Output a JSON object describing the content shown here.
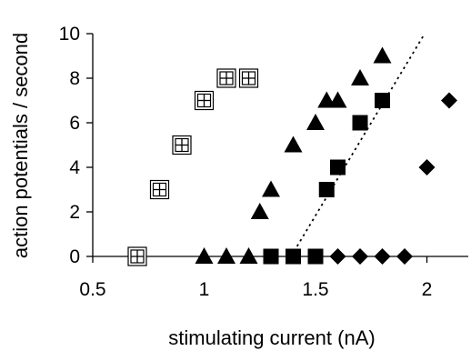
{
  "chart_data": {
    "type": "scatter",
    "title": "",
    "xlabel": "stimulating current (nA)",
    "ylabel": "action potentials / second",
    "xlim": [
      0.5,
      2.2
    ],
    "ylim": [
      0,
      10
    ],
    "xticks": [
      0.5,
      1,
      1.5,
      2
    ],
    "xtick_labels": [
      "0.5",
      "1",
      "1.5",
      "2"
    ],
    "yticks": [
      0,
      2,
      4,
      6,
      8,
      10
    ],
    "ytick_labels": [
      "0",
      "2",
      "4",
      "6",
      "8",
      "10"
    ],
    "grid": false,
    "legend": "none",
    "series": [
      {
        "marker": "boxed-plus",
        "color": "#000000",
        "points": [
          [
            0.7,
            0
          ],
          [
            0.8,
            3
          ],
          [
            0.9,
            5
          ],
          [
            1.0,
            7
          ],
          [
            1.1,
            8
          ],
          [
            1.2,
            8
          ]
        ]
      },
      {
        "marker": "triangle",
        "color": "#000000",
        "points": [
          [
            1.0,
            0
          ],
          [
            1.1,
            0
          ],
          [
            1.2,
            0
          ],
          [
            1.25,
            2
          ],
          [
            1.3,
            3
          ],
          [
            1.4,
            5
          ],
          [
            1.5,
            6
          ],
          [
            1.55,
            7
          ],
          [
            1.6,
            7
          ],
          [
            1.7,
            8
          ],
          [
            1.8,
            9
          ]
        ]
      },
      {
        "marker": "square",
        "color": "#000000",
        "points": [
          [
            1.3,
            0
          ],
          [
            1.4,
            0
          ],
          [
            1.5,
            0
          ],
          [
            1.55,
            3
          ],
          [
            1.6,
            4
          ],
          [
            1.7,
            6
          ],
          [
            1.8,
            7
          ]
        ]
      },
      {
        "marker": "diamond",
        "color": "#000000",
        "points": [
          [
            1.6,
            0
          ],
          [
            1.7,
            0
          ],
          [
            1.8,
            0
          ],
          [
            1.9,
            0
          ],
          [
            2.0,
            4
          ],
          [
            2.1,
            7
          ]
        ]
      }
    ],
    "lines": [
      {
        "style": "dotted",
        "color": "#000000",
        "x": [
          1.39,
          1.99
        ],
        "y": [
          0,
          10
        ]
      }
    ]
  }
}
